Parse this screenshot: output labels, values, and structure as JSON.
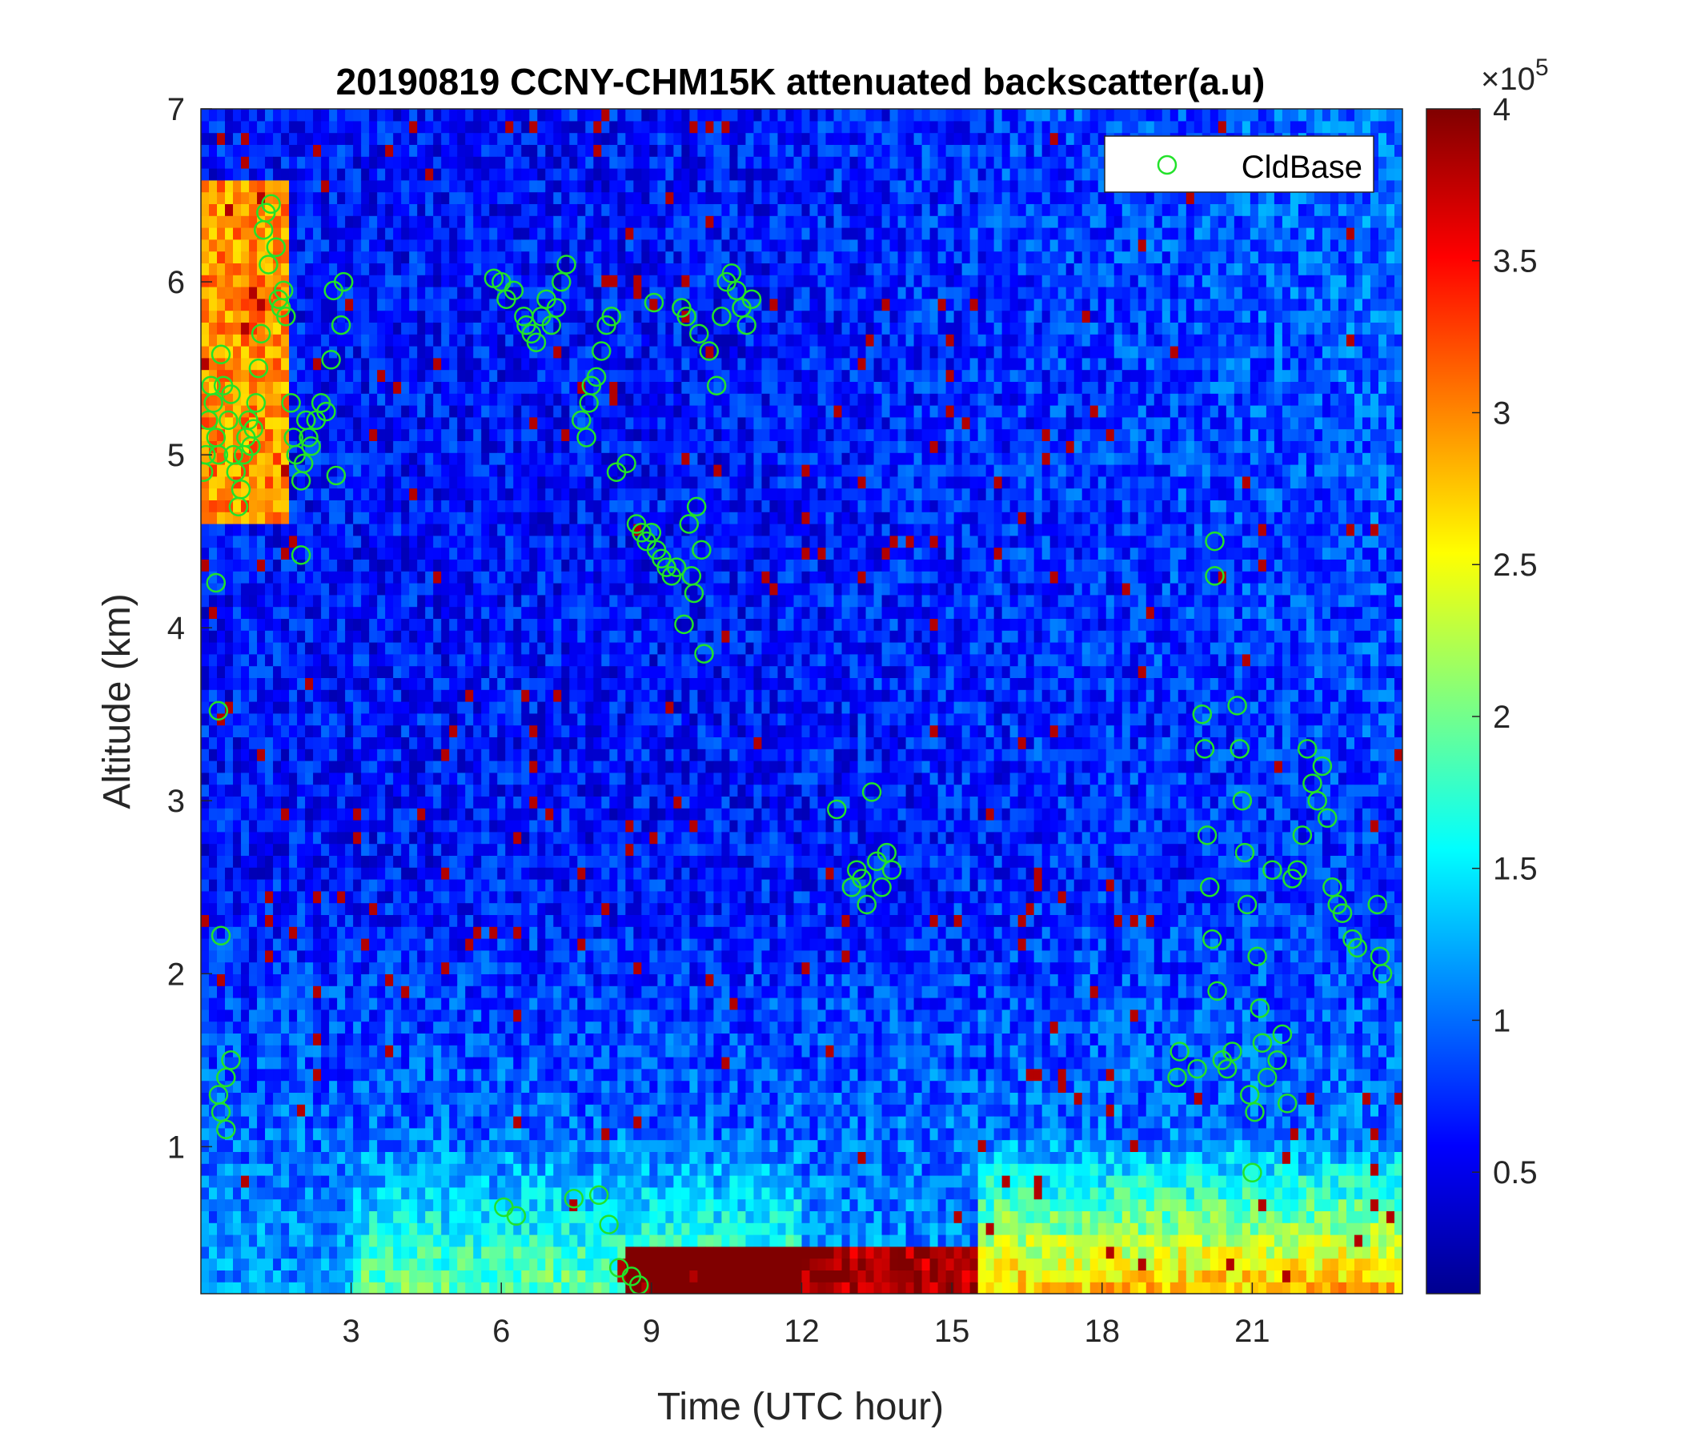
{
  "chart_data": {
    "type": "heatmap",
    "title": "20190819 CCNY-CHM15K attenuated backscatter(a.u)",
    "xlabel": "Time (UTC hour)",
    "ylabel": "Altitude (km)",
    "xlim": [
      0,
      24
    ],
    "ylim": [
      0.15,
      7
    ],
    "x_ticks": [
      3,
      6,
      9,
      12,
      15,
      18,
      21
    ],
    "y_ticks": [
      1,
      2,
      3,
      4,
      5,
      6,
      7
    ],
    "colorbar": {
      "colormap": "jet",
      "range": [
        0.1,
        4
      ],
      "ticks": [
        0.5,
        1,
        1.5,
        2,
        2.5,
        3,
        3.5,
        4
      ],
      "exponent_label": "×10",
      "exponent_power": "5"
    },
    "legend": {
      "position": "top-right",
      "entries": [
        "CldBase"
      ]
    },
    "series": [
      {
        "name": "CldBase",
        "marker": "circle",
        "color": "#22e22a",
        "points": [
          [
            0.05,
            4.9
          ],
          [
            0.1,
            5.0
          ],
          [
            0.15,
            5.2
          ],
          [
            0.2,
            5.4
          ],
          [
            0.25,
            5.3
          ],
          [
            0.3,
            4.26
          ],
          [
            0.3,
            5.1
          ],
          [
            0.35,
            5.0
          ],
          [
            0.35,
            3.52
          ],
          [
            0.35,
            1.3
          ],
          [
            0.4,
            5.58
          ],
          [
            0.4,
            2.22
          ],
          [
            0.4,
            1.2
          ],
          [
            0.45,
            5.4
          ],
          [
            0.5,
            1.4
          ],
          [
            0.5,
            1.1
          ],
          [
            0.55,
            5.2
          ],
          [
            0.6,
            1.5
          ],
          [
            0.6,
            5.35
          ],
          [
            0.65,
            5.0
          ],
          [
            0.7,
            4.9
          ],
          [
            0.75,
            4.7
          ],
          [
            0.8,
            4.8
          ],
          [
            0.85,
            5.0
          ],
          [
            0.9,
            5.1
          ],
          [
            0.95,
            5.2
          ],
          [
            1.0,
            5.05
          ],
          [
            1.05,
            5.15
          ],
          [
            1.1,
            5.3
          ],
          [
            1.15,
            5.5
          ],
          [
            1.2,
            5.7
          ],
          [
            1.25,
            6.3
          ],
          [
            1.3,
            6.4
          ],
          [
            1.35,
            6.1
          ],
          [
            1.4,
            6.45
          ],
          [
            1.5,
            6.2
          ],
          [
            1.55,
            5.9
          ],
          [
            1.6,
            5.85
          ],
          [
            1.65,
            5.95
          ],
          [
            1.7,
            5.8
          ],
          [
            1.8,
            5.3
          ],
          [
            1.85,
            5.1
          ],
          [
            1.9,
            5.0
          ],
          [
            2.0,
            4.85
          ],
          [
            2.0,
            4.42
          ],
          [
            2.05,
            4.95
          ],
          [
            2.1,
            5.2
          ],
          [
            2.15,
            5.1
          ],
          [
            2.2,
            5.05
          ],
          [
            2.3,
            5.2
          ],
          [
            2.4,
            5.3
          ],
          [
            2.5,
            5.25
          ],
          [
            2.6,
            5.55
          ],
          [
            2.65,
            5.95
          ],
          [
            2.7,
            4.88
          ],
          [
            2.8,
            5.75
          ],
          [
            2.85,
            6.0
          ],
          [
            5.85,
            6.02
          ],
          [
            6.0,
            6.0
          ],
          [
            6.05,
            0.65
          ],
          [
            6.1,
            5.9
          ],
          [
            6.25,
            5.95
          ],
          [
            6.3,
            0.6
          ],
          [
            6.45,
            5.8
          ],
          [
            6.5,
            5.75
          ],
          [
            6.6,
            5.7
          ],
          [
            6.7,
            5.65
          ],
          [
            6.8,
            5.8
          ],
          [
            6.9,
            5.9
          ],
          [
            7.0,
            5.75
          ],
          [
            7.1,
            5.85
          ],
          [
            7.2,
            6.0
          ],
          [
            7.3,
            6.1
          ],
          [
            7.45,
            0.7
          ],
          [
            7.6,
            5.2
          ],
          [
            7.7,
            5.1
          ],
          [
            7.75,
            5.3
          ],
          [
            7.8,
            5.4
          ],
          [
            7.9,
            5.45
          ],
          [
            7.95,
            0.72
          ],
          [
            8.0,
            5.6
          ],
          [
            8.1,
            5.75
          ],
          [
            8.15,
            0.55
          ],
          [
            8.2,
            5.8
          ],
          [
            8.3,
            4.9
          ],
          [
            8.35,
            0.3
          ],
          [
            8.5,
            4.95
          ],
          [
            8.6,
            0.25
          ],
          [
            8.7,
            4.6
          ],
          [
            8.75,
            0.2
          ],
          [
            8.8,
            4.55
          ],
          [
            8.9,
            4.5
          ],
          [
            9.0,
            4.55
          ],
          [
            9.05,
            5.88
          ],
          [
            9.1,
            4.45
          ],
          [
            9.2,
            4.4
          ],
          [
            9.3,
            4.35
          ],
          [
            9.4,
            4.3
          ],
          [
            9.5,
            4.35
          ],
          [
            9.6,
            5.85
          ],
          [
            9.65,
            4.02
          ],
          [
            9.7,
            5.8
          ],
          [
            9.75,
            4.6
          ],
          [
            9.8,
            4.3
          ],
          [
            9.85,
            4.2
          ],
          [
            9.9,
            4.7
          ],
          [
            9.95,
            5.7
          ],
          [
            10.0,
            4.45
          ],
          [
            10.05,
            3.85
          ],
          [
            10.15,
            5.6
          ],
          [
            10.3,
            5.4
          ],
          [
            10.4,
            5.8
          ],
          [
            10.5,
            6.0
          ],
          [
            10.6,
            6.05
          ],
          [
            10.7,
            5.95
          ],
          [
            10.8,
            5.85
          ],
          [
            10.9,
            5.75
          ],
          [
            11.0,
            5.9
          ],
          [
            12.7,
            2.95
          ],
          [
            13.0,
            2.5
          ],
          [
            13.1,
            2.6
          ],
          [
            13.2,
            2.55
          ],
          [
            13.3,
            2.4
          ],
          [
            13.4,
            3.05
          ],
          [
            13.5,
            2.65
          ],
          [
            13.6,
            2.5
          ],
          [
            13.7,
            2.7
          ],
          [
            13.8,
            2.6
          ],
          [
            19.5,
            1.4
          ],
          [
            19.55,
            1.55
          ],
          [
            19.9,
            1.45
          ],
          [
            20.0,
            3.5
          ],
          [
            20.05,
            3.3
          ],
          [
            20.1,
            2.8
          ],
          [
            20.15,
            2.5
          ],
          [
            20.2,
            2.2
          ],
          [
            20.25,
            4.5
          ],
          [
            20.25,
            4.3
          ],
          [
            20.3,
            1.9
          ],
          [
            20.4,
            1.5
          ],
          [
            20.5,
            1.45
          ],
          [
            20.6,
            1.55
          ],
          [
            20.7,
            3.55
          ],
          [
            20.75,
            3.3
          ],
          [
            20.8,
            3.0
          ],
          [
            20.85,
            2.7
          ],
          [
            20.9,
            2.4
          ],
          [
            20.95,
            1.3
          ],
          [
            21.0,
            0.85
          ],
          [
            21.05,
            1.2
          ],
          [
            21.1,
            2.1
          ],
          [
            21.15,
            1.8
          ],
          [
            21.2,
            1.6
          ],
          [
            21.3,
            1.4
          ],
          [
            21.4,
            2.6
          ],
          [
            21.5,
            1.5
          ],
          [
            21.6,
            1.65
          ],
          [
            21.7,
            1.25
          ],
          [
            21.8,
            2.55
          ],
          [
            21.9,
            2.6
          ],
          [
            22.0,
            2.8
          ],
          [
            22.1,
            3.3
          ],
          [
            22.2,
            3.1
          ],
          [
            22.3,
            3.0
          ],
          [
            22.4,
            3.2
          ],
          [
            22.5,
            2.9
          ],
          [
            22.6,
            2.5
          ],
          [
            22.7,
            2.4
          ],
          [
            22.8,
            2.35
          ],
          [
            23.0,
            2.2
          ],
          [
            23.1,
            2.15
          ],
          [
            23.5,
            2.4
          ],
          [
            23.55,
            2.1
          ],
          [
            23.6,
            2.0
          ]
        ]
      }
    ]
  }
}
